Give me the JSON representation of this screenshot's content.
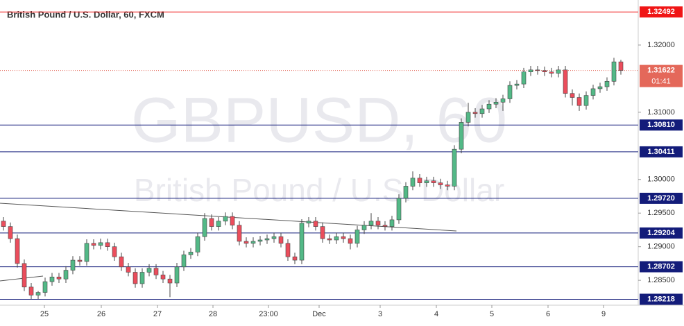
{
  "chart_data": {
    "type": "candlestick",
    "title": "British Pound / U.S. Dollar, 60, FXCM",
    "watermark_symbol": "GBPUSD, 60",
    "watermark_name": "British Pound / U.S. Dollar",
    "up_color": "#53b987",
    "down_color": "#eb4d5c",
    "wick_color": "#444444",
    "xlim": [
      0,
      92
    ],
    "xticks": [
      {
        "value": 6.4,
        "label": "25"
      },
      {
        "value": 14.6,
        "label": "26"
      },
      {
        "value": 22.7,
        "label": "27"
      },
      {
        "value": 30.7,
        "label": "28"
      },
      {
        "value": 38.7,
        "label": "23:00"
      },
      {
        "value": 46,
        "label": "Dec"
      },
      {
        "value": 54.8,
        "label": "3"
      },
      {
        "value": 62.9,
        "label": "4"
      },
      {
        "value": 70.9,
        "label": "5"
      },
      {
        "value": 79,
        "label": "6"
      },
      {
        "value": 87,
        "label": "9"
      }
    ],
    "ylim": [
      1.2813,
      1.3267
    ],
    "yticks": [
      {
        "value": 1.32,
        "label": "1.32000"
      },
      {
        "value": 1.31,
        "label": "1.31000"
      },
      {
        "value": 1.3,
        "label": "1.30000"
      },
      {
        "value": 1.295,
        "label": "1.29500"
      },
      {
        "value": 1.29,
        "label": "1.29000"
      },
      {
        "value": 1.285,
        "label": "1.28500"
      }
    ],
    "grid": false,
    "levels": [
      {
        "value": 1.32492,
        "label": "1.32492",
        "color": "#f01515"
      },
      {
        "value": 1.3081,
        "label": "1.30810",
        "color": "#131c7a"
      },
      {
        "value": 1.30411,
        "label": "1.30411",
        "color": "#131c7a"
      },
      {
        "value": 1.2972,
        "label": "1.29720",
        "color": "#131c7a"
      },
      {
        "value": 1.29204,
        "label": "1.29204",
        "color": "#131c7a"
      },
      {
        "value": 1.28702,
        "label": "1.28702",
        "color": "#131c7a"
      },
      {
        "value": 1.28218,
        "label": "1.28218",
        "color": "#131c7a"
      }
    ],
    "last_price": {
      "value": 1.31622,
      "label": "1.31622",
      "color": "#e4685a"
    },
    "countdown": "01:41",
    "open": [
      1.2938,
      1.293,
      1.2912,
      1.2875,
      1.284,
      1.2828,
      1.2832,
      1.2848,
      1.2855,
      1.2852,
      1.2865,
      1.288,
      1.2878,
      1.2905,
      1.2902,
      1.2906,
      1.29,
      1.2885,
      1.287,
      1.2862,
      1.2845,
      1.2862,
      1.2868,
      1.2858,
      1.2852,
      1.2846,
      1.287,
      1.2888,
      1.2892,
      1.2915,
      1.2942,
      1.293,
      1.2938,
      1.2945,
      1.2932,
      1.2908,
      1.2905,
      1.2908,
      1.291,
      1.2912,
      1.2915,
      1.2905,
      1.2885,
      1.288,
      1.2935,
      1.2938,
      1.293,
      1.2912,
      1.291,
      1.2915,
      1.2912,
      1.2905,
      1.2925,
      1.2932,
      1.2938,
      1.2932,
      1.293,
      1.294,
      1.2972,
      1.299,
      1.3002,
      1.2995,
      1.2998,
      1.2995,
      1.2992,
      1.299,
      1.3045,
      1.3085,
      1.31,
      1.3098,
      1.3105,
      1.3112,
      1.3115,
      1.312,
      1.314,
      1.3142,
      1.316,
      1.3163,
      1.3162,
      1.316,
      1.3158,
      1.3163,
      1.3128,
      1.3122,
      1.311,
      1.3125,
      1.3135,
      1.3138,
      1.3146,
      1.3175
    ],
    "high": [
      1.2944,
      1.2936,
      1.2918,
      1.2881,
      1.2846,
      1.2834,
      1.2854,
      1.2861,
      1.2861,
      1.2871,
      1.2886,
      1.2886,
      1.2911,
      1.2911,
      1.2912,
      1.2912,
      1.2906,
      1.2891,
      1.2876,
      1.2868,
      1.2868,
      1.2874,
      1.2874,
      1.2864,
      1.2858,
      1.2876,
      1.2894,
      1.2898,
      1.2921,
      1.295,
      1.2948,
      1.2944,
      1.2951,
      1.2951,
      1.2938,
      1.2914,
      1.2914,
      1.2916,
      1.2918,
      1.2921,
      1.2921,
      1.2911,
      1.2891,
      1.2941,
      1.2944,
      1.2944,
      1.2936,
      1.2918,
      1.2921,
      1.2921,
      1.2918,
      1.2931,
      1.2938,
      1.295,
      1.2944,
      1.2938,
      1.2946,
      1.2978,
      1.2996,
      1.3012,
      1.3008,
      1.3004,
      1.3004,
      1.3001,
      1.2998,
      1.3051,
      1.3091,
      1.3114,
      1.3106,
      1.3111,
      1.3118,
      1.3121,
      1.3126,
      1.3146,
      1.3148,
      1.3166,
      1.3169,
      1.3169,
      1.3168,
      1.3166,
      1.3169,
      1.3169,
      1.3134,
      1.3128,
      1.3131,
      1.3141,
      1.3144,
      1.3152,
      1.3181,
      1.3178
    ],
    "low": [
      1.2924,
      1.2906,
      1.2869,
      1.2834,
      1.2822,
      1.2822,
      1.2826,
      1.2842,
      1.2846,
      1.2846,
      1.2859,
      1.2872,
      1.2872,
      1.2896,
      1.2896,
      1.2894,
      1.2879,
      1.2864,
      1.2856,
      1.2839,
      1.2839,
      1.2856,
      1.2852,
      1.2846,
      1.2825,
      1.284,
      1.2864,
      1.2882,
      1.2886,
      1.2909,
      1.2924,
      1.2924,
      1.2932,
      1.2926,
      1.2902,
      1.2899,
      1.2899,
      1.2902,
      1.2904,
      1.2906,
      1.2899,
      1.2879,
      1.2874,
      1.2874,
      1.2929,
      1.2924,
      1.2906,
      1.2904,
      1.2904,
      1.2906,
      1.2896,
      1.2899,
      1.2919,
      1.2926,
      1.2926,
      1.2924,
      1.2924,
      1.2934,
      1.2966,
      1.2984,
      1.2989,
      1.2989,
      1.2989,
      1.2986,
      1.2984,
      1.2984,
      1.3039,
      1.3079,
      1.3092,
      1.3092,
      1.3099,
      1.3106,
      1.3102,
      1.3114,
      1.3134,
      1.3136,
      1.3154,
      1.3156,
      1.3154,
      1.3152,
      1.3152,
      1.3122,
      1.311,
      1.3102,
      1.3104,
      1.3119,
      1.3129,
      1.3132,
      1.314,
      1.3156
    ],
    "close": [
      1.293,
      1.2912,
      1.2875,
      1.284,
      1.2828,
      1.2832,
      1.2848,
      1.2855,
      1.2852,
      1.2865,
      1.288,
      1.2878,
      1.2905,
      1.2902,
      1.2906,
      1.29,
      1.2885,
      1.287,
      1.2862,
      1.2845,
      1.2862,
      1.2868,
      1.2858,
      1.2852,
      1.2846,
      1.287,
      1.2888,
      1.2892,
      1.2915,
      1.2942,
      1.293,
      1.2938,
      1.2945,
      1.2932,
      1.2908,
      1.2905,
      1.2908,
      1.291,
      1.2912,
      1.2915,
      1.2905,
      1.2885,
      1.288,
      1.2935,
      1.2938,
      1.293,
      1.2912,
      1.291,
      1.2915,
      1.2912,
      1.2905,
      1.2925,
      1.2932,
      1.2938,
      1.2932,
      1.293,
      1.294,
      1.2972,
      1.299,
      1.3002,
      1.2995,
      1.2998,
      1.2995,
      1.2992,
      1.299,
      1.3045,
      1.3085,
      1.31,
      1.3098,
      1.3105,
      1.3112,
      1.3115,
      1.312,
      1.314,
      1.3142,
      1.316,
      1.3163,
      1.3162,
      1.316,
      1.3158,
      1.3163,
      1.3128,
      1.3122,
      1.311,
      1.3125,
      1.3135,
      1.3138,
      1.3146,
      1.3175,
      1.31622
    ]
  }
}
